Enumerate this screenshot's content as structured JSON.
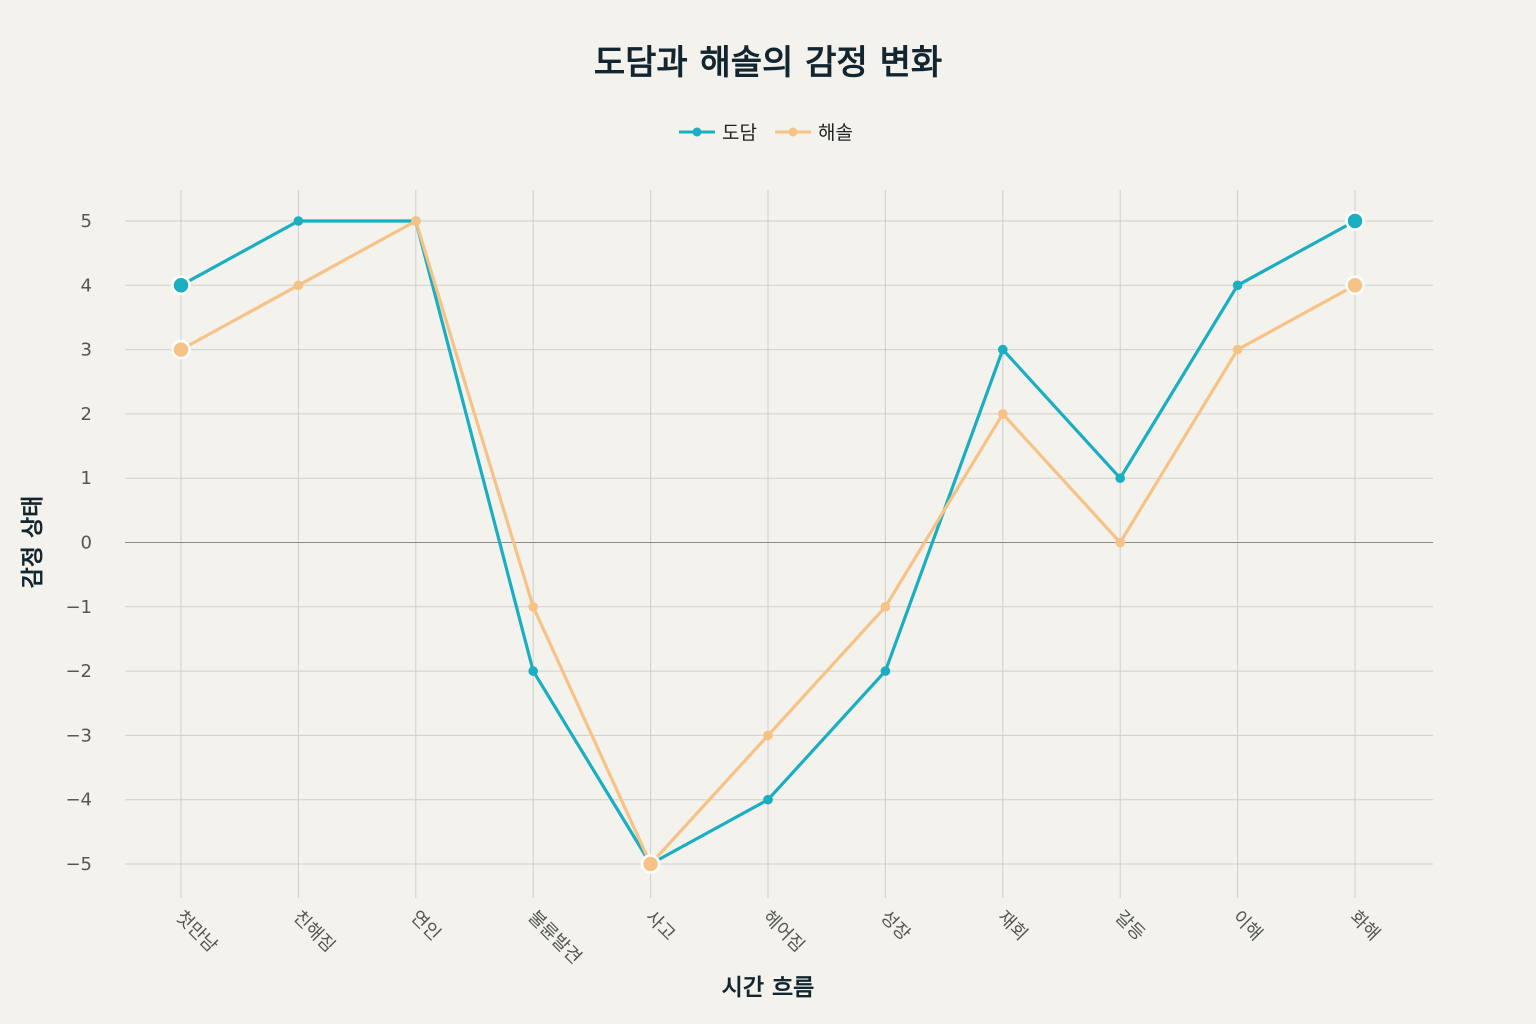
{
  "chart_data": {
    "type": "line",
    "title": "도담과 해솔의 감정 변화",
    "xlabel": "시간 흐름",
    "ylabel": "감정 상태",
    "categories": [
      "첫만남",
      "친해짐",
      "연인",
      "불륜발견",
      "사고",
      "헤어짐",
      "성장",
      "재회",
      "갈등",
      "이해",
      "화해"
    ],
    "ylim": [
      -5.5,
      5.5
    ],
    "yticks": [
      5,
      4,
      3,
      2,
      1,
      0,
      -1,
      -2,
      -3,
      -4,
      -5
    ],
    "ytick_labels": [
      "5",
      "4",
      "3",
      "2",
      "1",
      "0",
      "−1",
      "−2",
      "−3",
      "−4",
      "−5"
    ],
    "grid": true,
    "legend_position": "top-center",
    "series": [
      {
        "name": "도담",
        "color": "#1aaec3",
        "values": [
          4,
          5,
          5,
          -2,
          -5,
          -4,
          -2,
          3,
          1,
          4,
          5
        ]
      },
      {
        "name": "해솔",
        "color": "#f7c285",
        "values": [
          3,
          4,
          5,
          -1,
          -5,
          -3,
          -1,
          2,
          0,
          3,
          4
        ]
      }
    ],
    "highlight_indices": [
      0,
      4,
      10
    ]
  }
}
